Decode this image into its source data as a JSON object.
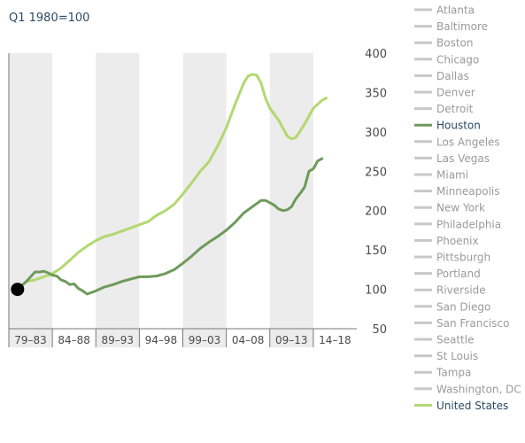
{
  "chart_data": {
    "type": "line",
    "subtitle": "Q1 1980=100",
    "ylim": [
      50,
      400
    ],
    "yticks": [
      50,
      100,
      150,
      200,
      250,
      300,
      350,
      400
    ],
    "x_periods": [
      "79–83",
      "84–88",
      "89–93",
      "94–98",
      "99–03",
      "04–08",
      "09–13",
      "14–18"
    ],
    "x_range": [
      1979,
      2019
    ],
    "grid": "alternating shaded 5-year bands",
    "base_point": {
      "x": 1980.0,
      "y": 100
    },
    "series": [
      {
        "name": "United States",
        "color": "#b2d870",
        "points": [
          [
            1980.0,
            100
          ],
          [
            1981.0,
            110
          ],
          [
            1982.0,
            112
          ],
          [
            1983.0,
            116
          ],
          [
            1984.0,
            120
          ],
          [
            1985.0,
            127
          ],
          [
            1986.0,
            137
          ],
          [
            1987.0,
            147
          ],
          [
            1988.0,
            155
          ],
          [
            1989.0,
            162
          ],
          [
            1990.0,
            167
          ],
          [
            1991.0,
            170
          ],
          [
            1992.0,
            174
          ],
          [
            1993.0,
            178
          ],
          [
            1994.0,
            182
          ],
          [
            1995.0,
            186
          ],
          [
            1996.0,
            194
          ],
          [
            1997.0,
            200
          ],
          [
            1998.0,
            208
          ],
          [
            1999.0,
            221
          ],
          [
            2000.0,
            235
          ],
          [
            2001.0,
            250
          ],
          [
            2002.0,
            262
          ],
          [
            2003.0,
            282
          ],
          [
            2004.0,
            305
          ],
          [
            2005.0,
            335
          ],
          [
            2006.0,
            362
          ],
          [
            2006.5,
            371
          ],
          [
            2007.0,
            373
          ],
          [
            2007.5,
            372
          ],
          [
            2008.0,
            362
          ],
          [
            2008.5,
            343
          ],
          [
            2009.0,
            330
          ],
          [
            2010.0,
            315
          ],
          [
            2011.0,
            295
          ],
          [
            2011.5,
            291
          ],
          [
            2012.0,
            293
          ],
          [
            2013.0,
            310
          ],
          [
            2014.0,
            330
          ],
          [
            2015.0,
            340
          ],
          [
            2015.5,
            343
          ]
        ]
      },
      {
        "name": "Houston",
        "color": "#6e9a5b",
        "points": [
          [
            1980.0,
            100
          ],
          [
            1980.5,
            105
          ],
          [
            1981.0,
            110
          ],
          [
            1981.5,
            116
          ],
          [
            1982.0,
            122
          ],
          [
            1982.5,
            122
          ],
          [
            1983.0,
            123
          ],
          [
            1983.5,
            121
          ],
          [
            1984.0,
            118
          ],
          [
            1984.5,
            117
          ],
          [
            1985.0,
            112
          ],
          [
            1985.5,
            110
          ],
          [
            1986.0,
            106
          ],
          [
            1986.5,
            107
          ],
          [
            1987.0,
            101
          ],
          [
            1987.5,
            98
          ],
          [
            1988.0,
            94
          ],
          [
            1988.5,
            96
          ],
          [
            1989.0,
            98
          ],
          [
            1990.0,
            103
          ],
          [
            1991.0,
            106
          ],
          [
            1992.0,
            110
          ],
          [
            1993.0,
            113
          ],
          [
            1994.0,
            116
          ],
          [
            1995.0,
            116
          ],
          [
            1996.0,
            117
          ],
          [
            1997.0,
            120
          ],
          [
            1998.0,
            125
          ],
          [
            1999.0,
            133
          ],
          [
            2000.0,
            142
          ],
          [
            2001.0,
            152
          ],
          [
            2002.0,
            160
          ],
          [
            2003.0,
            167
          ],
          [
            2004.0,
            175
          ],
          [
            2005.0,
            185
          ],
          [
            2006.0,
            197
          ],
          [
            2007.0,
            205
          ],
          [
            2008.0,
            213
          ],
          [
            2008.5,
            213
          ],
          [
            2009.0,
            210
          ],
          [
            2009.5,
            207
          ],
          [
            2010.0,
            202
          ],
          [
            2010.5,
            200
          ],
          [
            2011.0,
            201
          ],
          [
            2011.5,
            205
          ],
          [
            2012.0,
            215
          ],
          [
            2012.5,
            222
          ],
          [
            2013.0,
            230
          ],
          [
            2013.5,
            250
          ],
          [
            2014.0,
            253
          ],
          [
            2014.5,
            263
          ],
          [
            2015.0,
            266
          ]
        ]
      }
    ],
    "legend": {
      "placement": "right",
      "highlighted": [
        "Houston",
        "United States"
      ],
      "items": [
        "Atlanta",
        "Baltimore",
        "Boston",
        "Chicago",
        "Dallas",
        "Denver",
        "Detroit",
        "Houston",
        "Los Angeles",
        "Las Vegas",
        "Miami",
        "Minneapolis",
        "New York",
        "Philadelphia",
        "Phoenix",
        "Pittsburgh",
        "Portland",
        "Riverside",
        "San Diego",
        "San Francisco",
        "Seattle",
        "St Louis",
        "Tampa",
        "Washington, DC",
        "United States"
      ]
    }
  },
  "colors": {
    "band": "#ececec",
    "inactive_swatch": "#c8c8c8",
    "inactive_text": "#9a9a9a",
    "active_text": "#2c4a63",
    "axis": "#7a7a7a",
    "base_point": "#000000"
  }
}
